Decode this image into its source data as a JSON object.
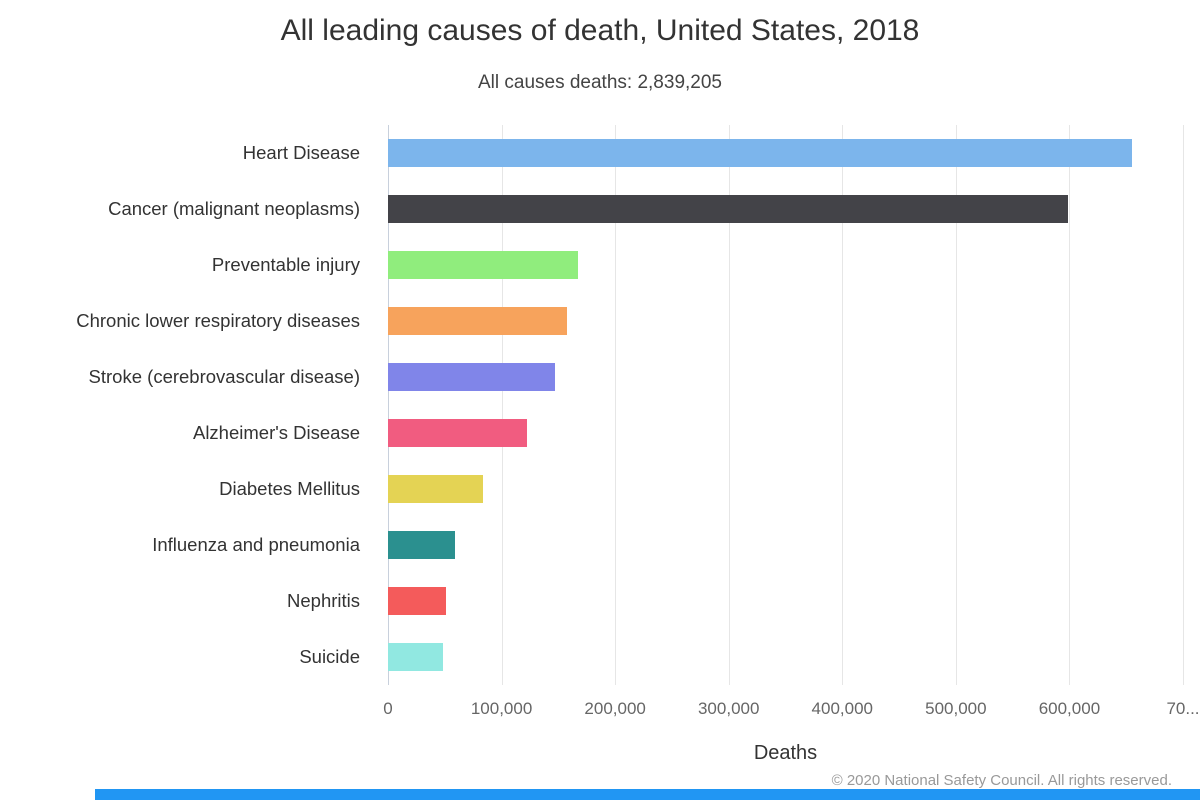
{
  "title": "All leading causes of death, United States, 2018",
  "subtitle": "All causes deaths: 2,839,205",
  "xaxis_title": "Deaths",
  "credit": "© 2020 National Safety Council. All rights reserved.",
  "colors": {
    "footer_bar": "#2196f3",
    "gridline": "#e6e6e6",
    "axis_line": "#c8d0dc"
  },
  "chart_data": {
    "type": "bar",
    "orientation": "horizontal",
    "title": "All leading causes of death, United States, 2018",
    "subtitle": "All causes deaths: 2,839,205",
    "xlabel": "Deaths",
    "ylabel": "",
    "xlim": [
      0,
      700000
    ],
    "tick_interval": 100000,
    "tick_labels": [
      "0",
      "100,000",
      "200,000",
      "300,000",
      "400,000",
      "500,000",
      "600,000",
      "70..."
    ],
    "grid": true,
    "legend": false,
    "categories": [
      "Heart Disease",
      "Cancer (malignant neoplasms)",
      "Preventable injury",
      "Chronic lower respiratory diseases",
      "Stroke (cerebrovascular disease)",
      "Alzheimer's Disease",
      "Diabetes Mellitus",
      "Influenza and pneumonia",
      "Nephritis",
      "Suicide"
    ],
    "values": [
      655000,
      599000,
      167000,
      158000,
      147000,
      122000,
      84000,
      59000,
      51000,
      48000
    ],
    "bar_colors": [
      "#7cb5ec",
      "#434348",
      "#90ed7d",
      "#f7a35c",
      "#8085e9",
      "#f15c80",
      "#e4d354",
      "#2b908f",
      "#f45b5b",
      "#91e8e1"
    ]
  }
}
